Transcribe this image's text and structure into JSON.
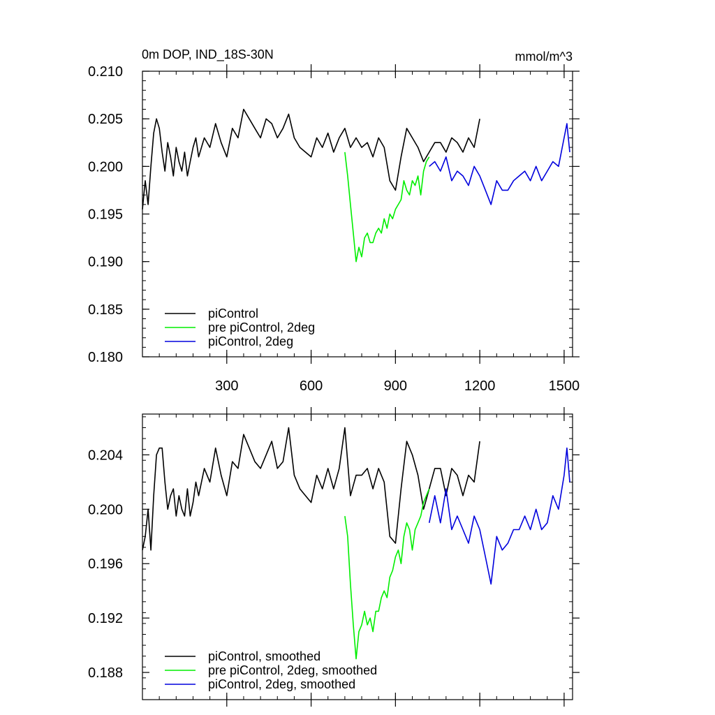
{
  "chart_data": [
    {
      "type": "line",
      "title": "0m DOP, IND_18S-30N",
      "units_label": "mmol/m^3",
      "xlabel": "",
      "ylabel": "",
      "xlim": [
        0,
        1530
      ],
      "ylim": [
        0.18,
        0.21
      ],
      "xticks": [
        300,
        600,
        900,
        1200,
        1500
      ],
      "xtick_labels": [
        "300",
        "600",
        "900",
        "1200",
        "1500"
      ],
      "yticks": [
        0.18,
        0.185,
        0.19,
        0.195,
        0.2,
        0.205,
        0.21
      ],
      "ytick_labels": [
        "0.180",
        "0.185",
        "0.190",
        "0.195",
        "0.200",
        "0.205",
        "0.210"
      ],
      "grid": false,
      "legend_position": "bottom-left",
      "series": [
        {
          "name": "piControl",
          "color": "#000000",
          "x": [
            0,
            10,
            20,
            30,
            40,
            50,
            60,
            70,
            80,
            90,
            100,
            110,
            120,
            130,
            140,
            150,
            160,
            170,
            180,
            190,
            200,
            220,
            240,
            260,
            280,
            300,
            320,
            340,
            360,
            380,
            400,
            420,
            440,
            460,
            480,
            500,
            520,
            540,
            560,
            580,
            600,
            620,
            640,
            660,
            680,
            700,
            720,
            740,
            760,
            780,
            800,
            820,
            840,
            860,
            880,
            900,
            920,
            940,
            960,
            980,
            1000,
            1020,
            1040,
            1060,
            1080,
            1100,
            1120,
            1140,
            1160,
            1180,
            1200
          ],
          "y": [
            0.1955,
            0.1985,
            0.196,
            0.2,
            0.2035,
            0.205,
            0.204,
            0.2015,
            0.1995,
            0.2025,
            0.201,
            0.199,
            0.202,
            0.2005,
            0.1995,
            0.2015,
            0.199,
            0.2005,
            0.202,
            0.203,
            0.201,
            0.203,
            0.202,
            0.2045,
            0.2025,
            0.201,
            0.204,
            0.203,
            0.206,
            0.205,
            0.204,
            0.203,
            0.205,
            0.2045,
            0.203,
            0.204,
            0.2055,
            0.203,
            0.202,
            0.2015,
            0.201,
            0.203,
            0.202,
            0.2035,
            0.2015,
            0.203,
            0.204,
            0.202,
            0.203,
            0.202,
            0.2025,
            0.201,
            0.203,
            0.202,
            0.1985,
            0.1975,
            0.201,
            0.204,
            0.203,
            0.202,
            0.2005,
            0.2015,
            0.2025,
            0.2025,
            0.2015,
            0.203,
            0.2025,
            0.2015,
            0.203,
            0.202,
            0.205
          ]
        },
        {
          "name": "pre piControl, 2deg",
          "color": "#00ee00",
          "x": [
            720,
            730,
            740,
            750,
            760,
            770,
            780,
            790,
            800,
            810,
            820,
            830,
            840,
            850,
            860,
            870,
            880,
            890,
            900,
            910,
            920,
            930,
            940,
            950,
            960,
            970,
            980,
            990,
            1000,
            1010,
            1020
          ],
          "y": [
            0.2015,
            0.199,
            0.196,
            0.193,
            0.19,
            0.1915,
            0.1905,
            0.1925,
            0.193,
            0.192,
            0.192,
            0.193,
            0.1935,
            0.193,
            0.1945,
            0.1935,
            0.195,
            0.1945,
            0.1955,
            0.196,
            0.1965,
            0.1985,
            0.1975,
            0.197,
            0.1985,
            0.198,
            0.199,
            0.197,
            0.1995,
            0.2005,
            0.201
          ]
        },
        {
          "name": "piControl, 2deg",
          "color": "#0000dd",
          "x": [
            1020,
            1040,
            1060,
            1080,
            1100,
            1120,
            1140,
            1160,
            1180,
            1200,
            1220,
            1240,
            1260,
            1280,
            1300,
            1320,
            1340,
            1360,
            1380,
            1400,
            1420,
            1440,
            1460,
            1480,
            1500,
            1510,
            1520
          ],
          "y": [
            0.2,
            0.2005,
            0.1995,
            0.201,
            0.1985,
            0.1995,
            0.199,
            0.198,
            0.2,
            0.199,
            0.1975,
            0.196,
            0.1985,
            0.1975,
            0.1975,
            0.1985,
            0.199,
            0.1995,
            0.1985,
            0.2,
            0.1985,
            0.1995,
            0.2005,
            0.2,
            0.203,
            0.2045,
            0.2015
          ]
        }
      ]
    },
    {
      "type": "line",
      "title": "",
      "xlabel": "",
      "ylabel": "",
      "xlim": [
        0,
        1530
      ],
      "ylim": [
        0.186,
        0.207
      ],
      "xticks": [
        300,
        600,
        900,
        1200,
        1500
      ],
      "xtick_labels": [
        "",
        "",
        "",
        "",
        ""
      ],
      "yticks": [
        0.188,
        0.192,
        0.196,
        0.2,
        0.204
      ],
      "ytick_labels": [
        "0.188",
        "0.192",
        "0.196",
        "0.200",
        "0.204"
      ],
      "grid": false,
      "legend_position": "bottom-left",
      "series": [
        {
          "name": "piControl, smoothed",
          "color": "#000000",
          "x": [
            0,
            10,
            20,
            30,
            40,
            50,
            60,
            70,
            80,
            90,
            100,
            110,
            120,
            130,
            140,
            150,
            160,
            170,
            180,
            190,
            200,
            220,
            240,
            260,
            280,
            300,
            320,
            340,
            360,
            380,
            400,
            420,
            440,
            460,
            480,
            500,
            520,
            540,
            560,
            580,
            600,
            620,
            640,
            660,
            680,
            700,
            720,
            740,
            760,
            780,
            800,
            820,
            840,
            860,
            880,
            900,
            920,
            940,
            960,
            980,
            1000,
            1020,
            1040,
            1060,
            1080,
            1100,
            1120,
            1140,
            1160,
            1180,
            1200
          ],
          "y": [
            0.197,
            0.198,
            0.2,
            0.197,
            0.201,
            0.204,
            0.2045,
            0.2045,
            0.202,
            0.2,
            0.201,
            0.2015,
            0.1995,
            0.201,
            0.2,
            0.1995,
            0.2015,
            0.1995,
            0.2005,
            0.202,
            0.201,
            0.203,
            0.202,
            0.2045,
            0.2025,
            0.201,
            0.2035,
            0.203,
            0.2055,
            0.2045,
            0.2035,
            0.203,
            0.204,
            0.205,
            0.203,
            0.2035,
            0.206,
            0.2025,
            0.2015,
            0.201,
            0.2005,
            0.2025,
            0.2015,
            0.203,
            0.2015,
            0.203,
            0.206,
            0.201,
            0.2025,
            0.2025,
            0.203,
            0.2015,
            0.203,
            0.202,
            0.198,
            0.1975,
            0.2015,
            0.205,
            0.204,
            0.2025,
            0.2,
            0.2015,
            0.203,
            0.203,
            0.201,
            0.203,
            0.2025,
            0.201,
            0.2025,
            0.202,
            0.205
          ]
        },
        {
          "name": "pre piControl, 2deg, smoothed",
          "color": "#00ee00",
          "x": [
            720,
            730,
            740,
            750,
            760,
            770,
            780,
            790,
            800,
            810,
            820,
            830,
            840,
            850,
            860,
            870,
            880,
            890,
            900,
            910,
            920,
            930,
            940,
            950,
            960,
            970,
            980,
            990,
            1000,
            1010,
            1020
          ],
          "y": [
            0.1995,
            0.198,
            0.1945,
            0.1915,
            0.189,
            0.191,
            0.1915,
            0.1925,
            0.1915,
            0.192,
            0.191,
            0.1925,
            0.1925,
            0.1935,
            0.194,
            0.1935,
            0.195,
            0.1955,
            0.1965,
            0.197,
            0.196,
            0.198,
            0.199,
            0.1985,
            0.197,
            0.1985,
            0.199,
            0.1995,
            0.2005,
            0.201,
            0.2015
          ]
        },
        {
          "name": "piControl, 2deg, smoothed",
          "color": "#0000dd",
          "x": [
            1020,
            1040,
            1060,
            1080,
            1100,
            1120,
            1140,
            1160,
            1180,
            1200,
            1220,
            1240,
            1260,
            1280,
            1300,
            1320,
            1340,
            1360,
            1380,
            1400,
            1420,
            1440,
            1460,
            1480,
            1500,
            1510,
            1520
          ],
          "y": [
            0.199,
            0.201,
            0.199,
            0.2015,
            0.1985,
            0.1995,
            0.1985,
            0.1975,
            0.1995,
            0.1985,
            0.1965,
            0.1945,
            0.198,
            0.197,
            0.1975,
            0.1985,
            0.1985,
            0.1995,
            0.1985,
            0.2,
            0.1985,
            0.199,
            0.201,
            0.2,
            0.2025,
            0.2045,
            0.202
          ]
        }
      ]
    }
  ]
}
